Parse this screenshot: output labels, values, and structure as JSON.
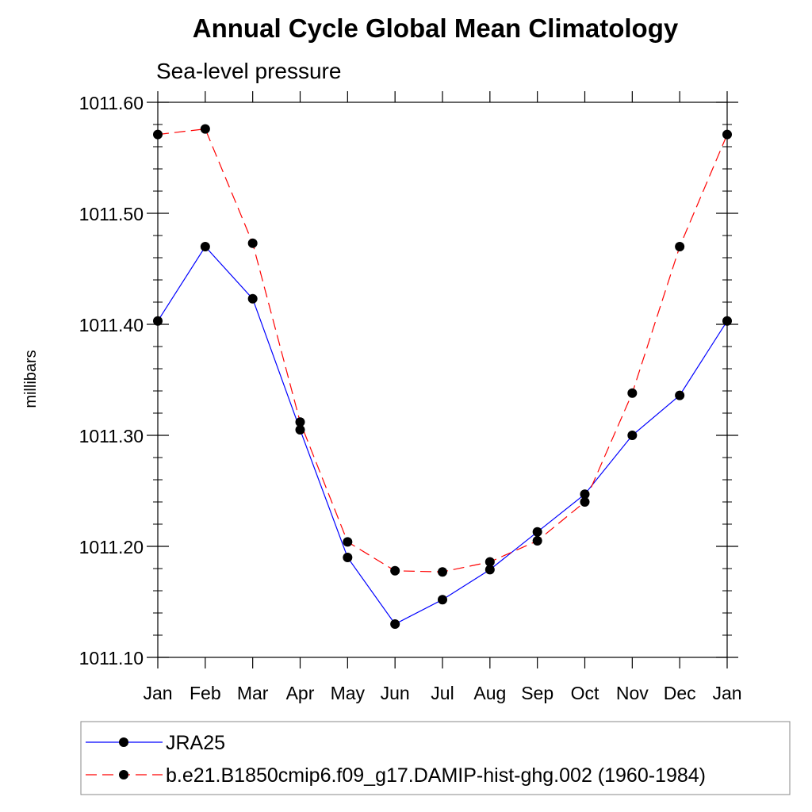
{
  "chart_data": {
    "type": "line",
    "title": "Annual Cycle Global Mean Climatology",
    "subtitle": "Sea-level pressure",
    "xlabel": "",
    "ylabel": "millibars",
    "categories": [
      "Jan",
      "Feb",
      "Mar",
      "Apr",
      "May",
      "Jun",
      "Jul",
      "Aug",
      "Sep",
      "Oct",
      "Nov",
      "Dec",
      "Jan"
    ],
    "ylim": [
      1011.1,
      1011.6
    ],
    "yticks": [
      "1011.10",
      "1011.20",
      "1011.30",
      "1011.40",
      "1011.50",
      "1011.60"
    ],
    "grid": false,
    "legend_position": "bottom",
    "series": [
      {
        "name": "JRA25",
        "color": "#0000ff",
        "line_style": "solid",
        "values": [
          1011.403,
          1011.47,
          1011.423,
          1011.305,
          1011.19,
          1011.13,
          1011.152,
          1011.179,
          1011.213,
          1011.247,
          1011.3,
          1011.336,
          1011.403
        ]
      },
      {
        "name": "b.e21.B1850cmip6.f09_g17.DAMIP-hist-ghg.002 (1960-1984)",
        "color": "#ff0000",
        "line_style": "dashed",
        "values": [
          1011.571,
          1011.576,
          1011.473,
          1011.312,
          1011.204,
          1011.178,
          1011.177,
          1011.186,
          1011.205,
          1011.24,
          1011.338,
          1011.47,
          1011.571
        ]
      }
    ]
  }
}
